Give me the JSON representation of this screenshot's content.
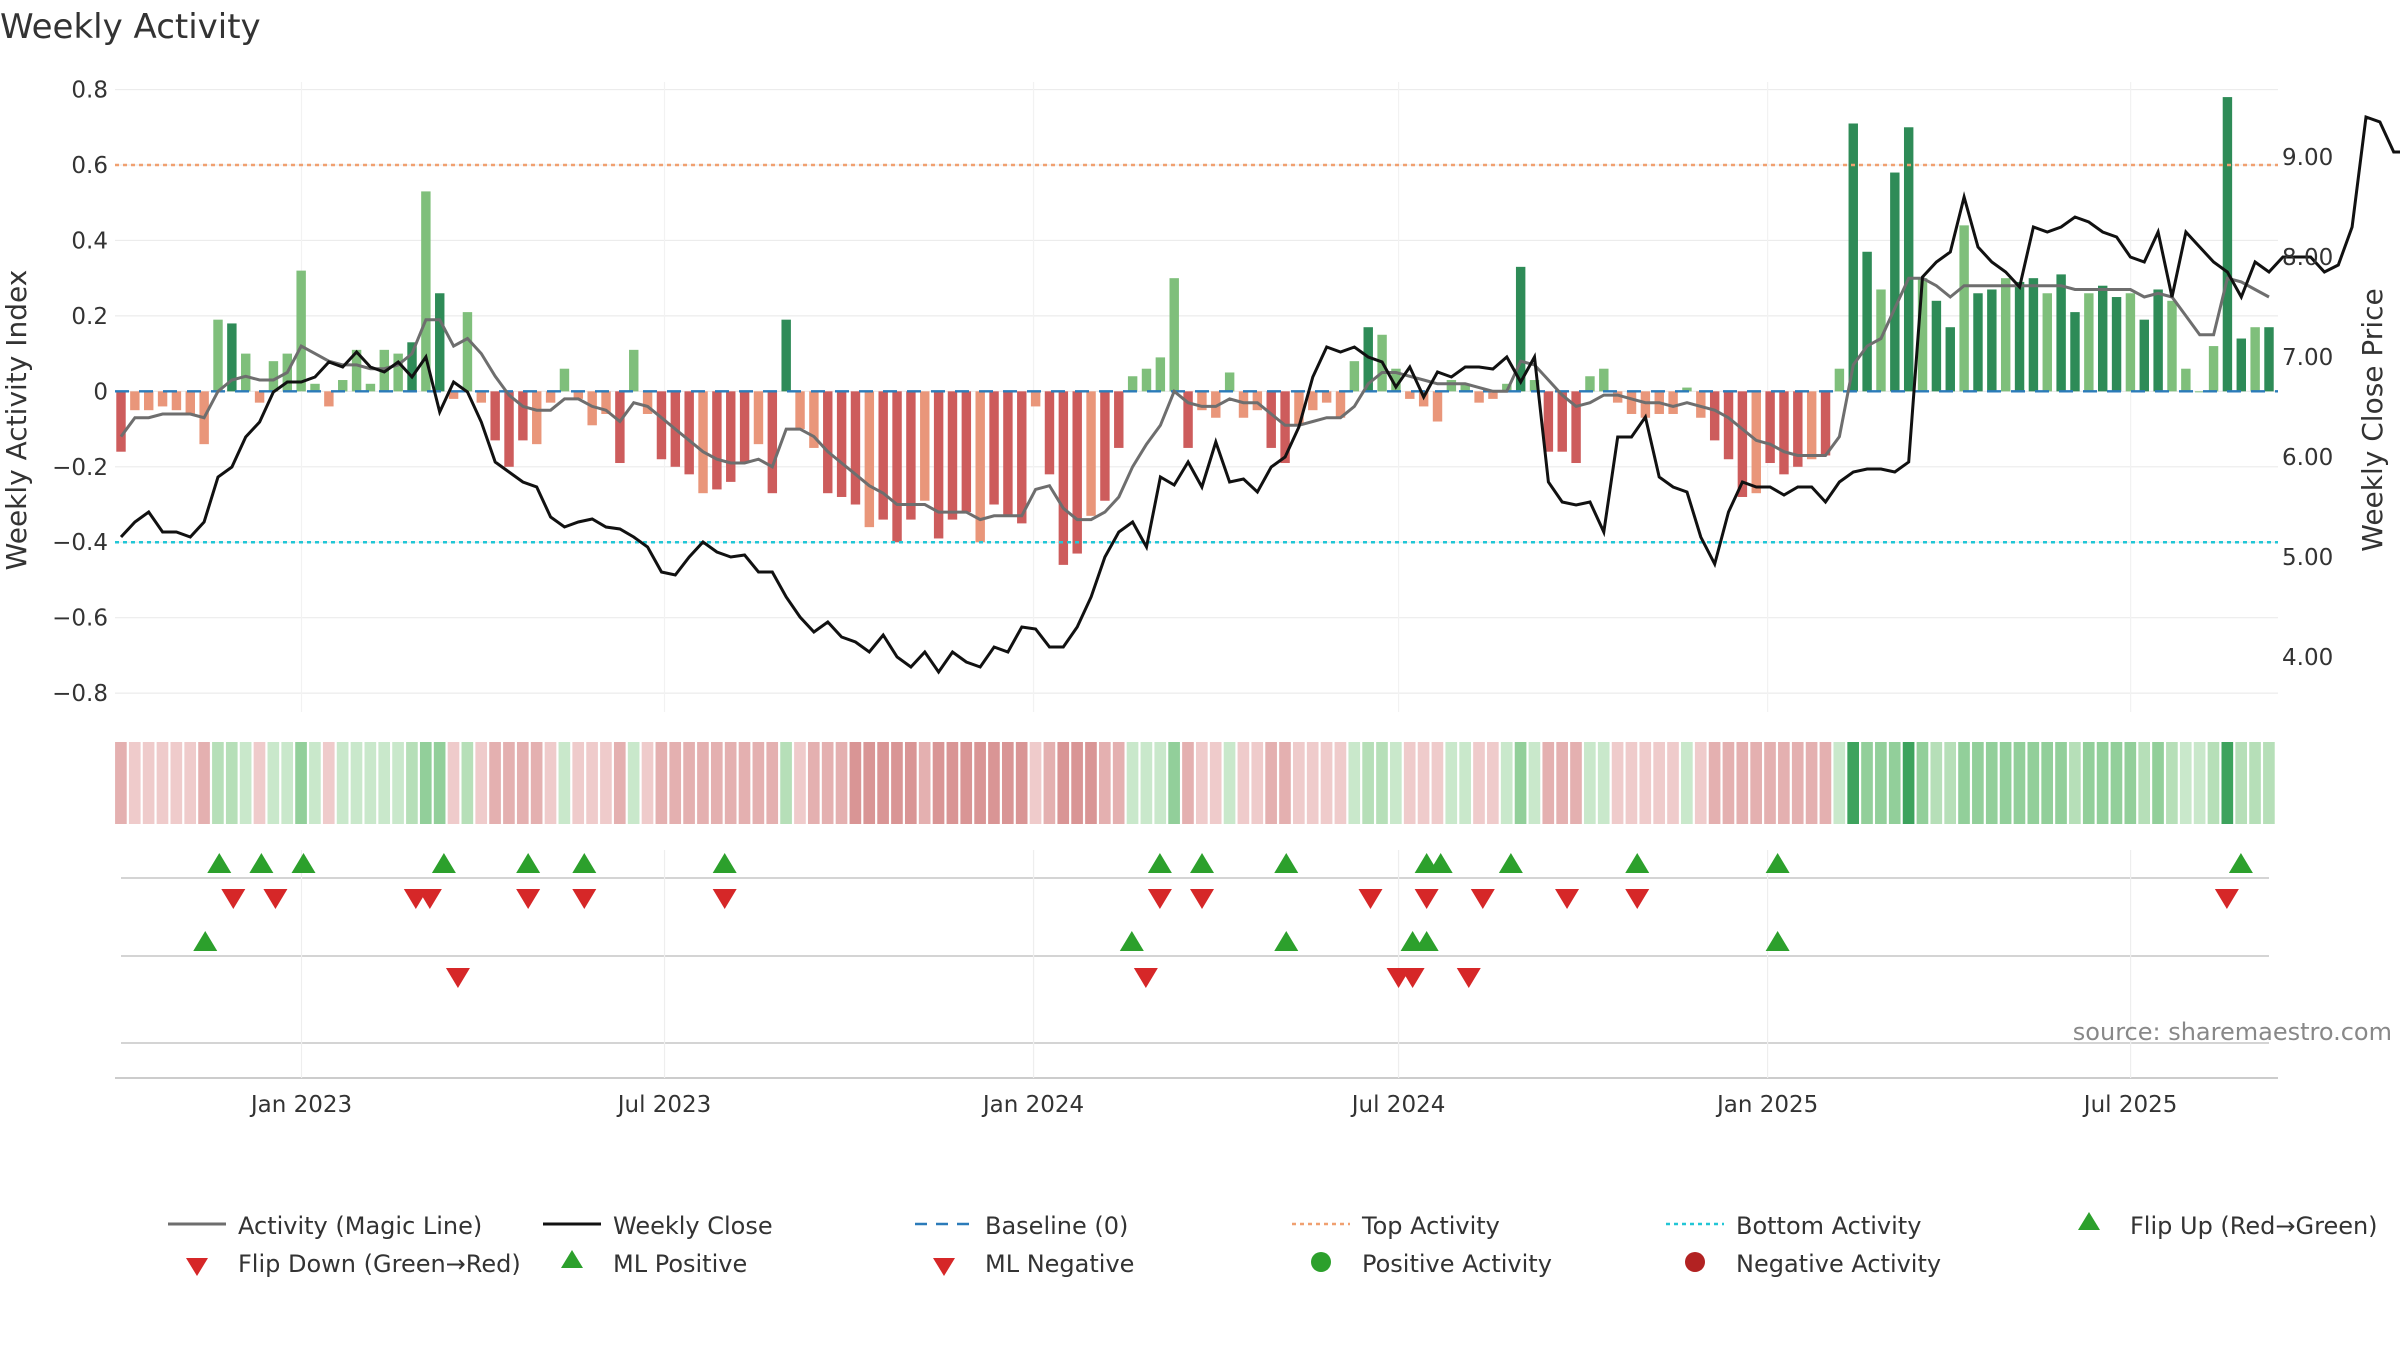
{
  "chart_data": {
    "type": "bar+line",
    "title": "Weekly Activity",
    "ylabel_left": "Weekly Activity Index",
    "ylabel_right": "Weekly Close Price",
    "ylim_left": [
      -0.85,
      0.82
    ],
    "ylim_right": [
      3.45,
      9.75
    ],
    "yticks_left": [
      0.8,
      0.6,
      0.4,
      0.2,
      0,
      -0.2,
      -0.4,
      -0.6,
      -0.8
    ],
    "ytick_labels_left": [
      "0.8",
      "0.6",
      "0.4",
      "0.2",
      "0",
      "−0.2",
      "−0.4",
      "−0.6",
      "−0.8"
    ],
    "yticks_right": [
      9,
      8,
      7,
      6,
      5,
      4
    ],
    "ytick_labels_right": [
      "9.00",
      "8.00",
      "7.00",
      "6.00",
      "5.00",
      "4.00"
    ],
    "x_start": "2022-10-03",
    "x_end": "2025-09-08",
    "xticks": [
      {
        "date": "2023-01-01",
        "label": "Jan 2023"
      },
      {
        "date": "2023-07-01",
        "label": "Jul 2023"
      },
      {
        "date": "2024-01-01",
        "label": "Jan 2024"
      },
      {
        "date": "2024-07-01",
        "label": "Jul 2024"
      },
      {
        "date": "2025-01-01",
        "label": "Jan 2025"
      },
      {
        "date": "2025-07-01",
        "label": "Jul 2025"
      }
    ],
    "top_activity": 0.6,
    "bottom_activity": -0.4,
    "baseline": 0,
    "activity": [
      -0.16,
      -0.05,
      -0.05,
      -0.04,
      -0.05,
      -0.06,
      -0.14,
      0.19,
      0.18,
      0.1,
      -0.03,
      0.08,
      0.1,
      0.32,
      0.02,
      -0.04,
      0.03,
      0.11,
      0.02,
      0.11,
      0.1,
      0.13,
      0.53,
      0.26,
      -0.02,
      0.21,
      -0.03,
      -0.13,
      -0.2,
      -0.13,
      -0.14,
      -0.03,
      0.06,
      -0.02,
      -0.09,
      -0.06,
      -0.19,
      0.11,
      -0.06,
      -0.18,
      -0.2,
      -0.22,
      -0.27,
      -0.26,
      -0.24,
      -0.19,
      -0.14,
      -0.27,
      0.19,
      -0.1,
      -0.15,
      -0.27,
      -0.28,
      -0.3,
      -0.36,
      -0.34,
      -0.4,
      -0.34,
      -0.29,
      -0.39,
      -0.34,
      -0.32,
      -0.4,
      -0.3,
      -0.33,
      -0.35,
      -0.04,
      -0.22,
      -0.46,
      -0.43,
      -0.33,
      -0.29,
      -0.15,
      0.04,
      0.06,
      0.09,
      0.3,
      -0.15,
      -0.05,
      -0.07,
      0.05,
      -0.07,
      -0.05,
      -0.15,
      -0.19,
      -0.09,
      -0.05,
      -0.03,
      -0.07,
      0.08,
      0.17,
      0.15,
      0.06,
      -0.02,
      -0.04,
      -0.08,
      0.03,
      0.02,
      -0.03,
      -0.02,
      0.02,
      0.33,
      0.03,
      -0.16,
      -0.16,
      -0.19,
      0.04,
      0.06,
      -0.03,
      -0.06,
      -0.07,
      -0.06,
      -0.06,
      0.01,
      -0.07,
      -0.13,
      -0.18,
      -0.28,
      -0.27,
      -0.19,
      -0.22,
      -0.2,
      -0.18,
      -0.17,
      0.06,
      0.71,
      0.37,
      0.27,
      0.58,
      0.7,
      0.3,
      0.24,
      0.17,
      0.44,
      0.26,
      0.27,
      0.3,
      0.29,
      0.3,
      0.26,
      0.31,
      0.21,
      0.26,
      0.28,
      0.25,
      0.26,
      0.19,
      0.27,
      0.24,
      0.06,
      0,
      0.12,
      0.78,
      0.14,
      0.17,
      0.17
    ],
    "magic_line": [
      -0.12,
      -0.07,
      -0.07,
      -0.06,
      -0.06,
      -0.06,
      -0.07,
      0,
      0.03,
      0.04,
      0.03,
      0.03,
      0.05,
      0.12,
      0.1,
      0.08,
      0.07,
      0.07,
      0.06,
      0.06,
      0.07,
      0.1,
      0.19,
      0.19,
      0.12,
      0.14,
      0.1,
      0.04,
      -0.01,
      -0.04,
      -0.05,
      -0.05,
      -0.02,
      -0.02,
      -0.04,
      -0.05,
      -0.08,
      -0.03,
      -0.04,
      -0.07,
      -0.1,
      -0.13,
      -0.16,
      -0.18,
      -0.19,
      -0.19,
      -0.18,
      -0.2,
      -0.1,
      -0.1,
      -0.12,
      -0.16,
      -0.19,
      -0.22,
      -0.25,
      -0.27,
      -0.3,
      -0.3,
      -0.3,
      -0.32,
      -0.32,
      -0.32,
      -0.34,
      -0.33,
      -0.33,
      -0.33,
      -0.26,
      -0.25,
      -0.31,
      -0.34,
      -0.34,
      -0.32,
      -0.28,
      -0.2,
      -0.14,
      -0.09,
      0,
      -0.03,
      -0.04,
      -0.04,
      -0.02,
      -0.03,
      -0.03,
      -0.06,
      -0.09,
      -0.09,
      -0.08,
      -0.07,
      -0.07,
      -0.04,
      0.02,
      0.05,
      0.05,
      0.04,
      0.03,
      0.02,
      0.02,
      0.02,
      0.01,
      0,
      0,
      0.08,
      0.07,
      0.03,
      -0.01,
      -0.04,
      -0.03,
      -0.01,
      -0.01,
      -0.02,
      -0.03,
      -0.03,
      -0.04,
      -0.03,
      -0.04,
      -0.05,
      -0.07,
      -0.1,
      -0.13,
      -0.14,
      -0.16,
      -0.17,
      -0.17,
      -0.17,
      -0.12,
      0.07,
      0.12,
      0.14,
      0.22,
      0.3,
      0.3,
      0.28,
      0.25,
      0.28,
      0.28,
      0.28,
      0.28,
      0.28,
      0.28,
      0.28,
      0.28,
      0.27,
      0.27,
      0.27,
      0.27,
      0.27,
      0.25,
      0.26,
      0.25,
      0.2,
      0.15,
      0.15,
      0.3,
      0.29,
      0.27,
      0.25
    ],
    "weekly_close": [
      5.2,
      5.35,
      5.45,
      5.25,
      5.25,
      5.2,
      5.35,
      5.8,
      5.9,
      6.2,
      6.35,
      6.65,
      6.75,
      6.75,
      6.8,
      6.95,
      6.9,
      7.05,
      6.9,
      6.85,
      6.95,
      6.8,
      7.0,
      6.45,
      6.75,
      6.65,
      6.35,
      5.95,
      5.85,
      5.75,
      5.7,
      5.4,
      5.3,
      5.35,
      5.38,
      5.3,
      5.28,
      5.2,
      5.1,
      4.85,
      4.82,
      5.0,
      5.15,
      5.05,
      5.0,
      5.02,
      4.85,
      4.85,
      4.6,
      4.4,
      4.25,
      4.35,
      4.2,
      4.15,
      4.05,
      4.22,
      4.0,
      3.9,
      4.05,
      3.85,
      4.05,
      3.95,
      3.9,
      4.1,
      4.05,
      4.3,
      4.28,
      4.1,
      4.1,
      4.3,
      4.6,
      5.0,
      5.25,
      5.35,
      5.1,
      5.8,
      5.72,
      5.95,
      5.7,
      6.15,
      5.75,
      5.78,
      5.65,
      5.9,
      6.0,
      6.3,
      6.8,
      7.1,
      7.05,
      7.1,
      7.0,
      6.95,
      6.7,
      6.9,
      6.6,
      6.85,
      6.8,
      6.9,
      6.9,
      6.88,
      7.0,
      6.75,
      7.0,
      5.75,
      5.55,
      5.52,
      5.55,
      5.25,
      6.2,
      6.2,
      6.4,
      5.8,
      5.7,
      5.65,
      5.2,
      4.93,
      5.45,
      5.75,
      5.7,
      5.7,
      5.62,
      5.7,
      5.7,
      5.55,
      5.75,
      5.85,
      5.88,
      5.88,
      5.85,
      5.95,
      7.8,
      7.95,
      8.05,
      8.6,
      8.1,
      7.95,
      7.85,
      7.7,
      8.3,
      8.25,
      8.3,
      8.4,
      8.35,
      8.25,
      8.2,
      8.0,
      7.95,
      8.25,
      7.6,
      8.25,
      8.1,
      7.95,
      7.85,
      7.6,
      7.95,
      7.85,
      8.0,
      8.0,
      8.0,
      7.85,
      7.92,
      8.3,
      9.4,
      9.35,
      9.05,
      9.05
    ],
    "flip_up": [
      "2022-11-21",
      "2022-12-12",
      "2023-01-02",
      "2023-03-13",
      "2023-04-24",
      "2023-05-22",
      "2023-07-31",
      "2024-03-04",
      "2024-03-25",
      "2024-05-06",
      "2024-07-15",
      "2024-07-22",
      "2024-08-26",
      "2024-10-28",
      "2025-01-06",
      "2025-08-25"
    ],
    "flip_down": [
      "2022-11-28",
      "2022-12-19",
      "2023-02-27",
      "2023-03-06",
      "2023-04-24",
      "2023-05-22",
      "2023-07-31",
      "2024-03-04",
      "2024-03-25",
      "2024-06-17",
      "2024-07-15",
      "2024-08-12",
      "2024-09-23",
      "2024-10-28",
      "2025-08-18"
    ],
    "ml_positive": [
      "2022-11-14",
      "2024-02-19",
      "2024-05-06",
      "2024-07-08",
      "2024-07-15"
    ],
    "ml_negative": [
      "2023-03-20",
      "2024-02-26",
      "2024-07-01",
      "2024-07-08",
      "2024-08-05"
    ],
    "ml_positive_extra": [
      "2025-01-06"
    ],
    "source": "source: sharemaestro.com",
    "legend": [
      {
        "label": "Activity (Magic Line)",
        "kind": "line",
        "color": "#6e6e6e"
      },
      {
        "label": "Weekly Close",
        "kind": "line",
        "color": "#111111"
      },
      {
        "label": "Baseline (0)",
        "kind": "dash",
        "color": "#2b7bb9"
      },
      {
        "label": "Top Activity",
        "kind": "dot",
        "color": "#f0a070"
      },
      {
        "label": "Bottom Activity",
        "kind": "dot",
        "color": "#22c6d6"
      },
      {
        "label": "Flip Up (Red→Green)",
        "kind": "tri-up",
        "color": "#2ca02c"
      },
      {
        "label": "Flip Down (Green→Red)",
        "kind": "tri-down",
        "color": "#d62728"
      },
      {
        "label": "ML Positive",
        "kind": "tri-up",
        "color": "#2ca02c"
      },
      {
        "label": "ML Negative",
        "kind": "tri-down",
        "color": "#d62728"
      },
      {
        "label": "Positive Activity",
        "kind": "circle",
        "color": "#2ca02c"
      },
      {
        "label": "Negative Activity",
        "kind": "circle",
        "color": "#b22222"
      }
    ],
    "colors": {
      "pos_strong": "#2e8b57",
      "pos_light": "#7fbf7b",
      "neg_strong": "#cd5c5c",
      "neg_light": "#e9967a"
    }
  }
}
